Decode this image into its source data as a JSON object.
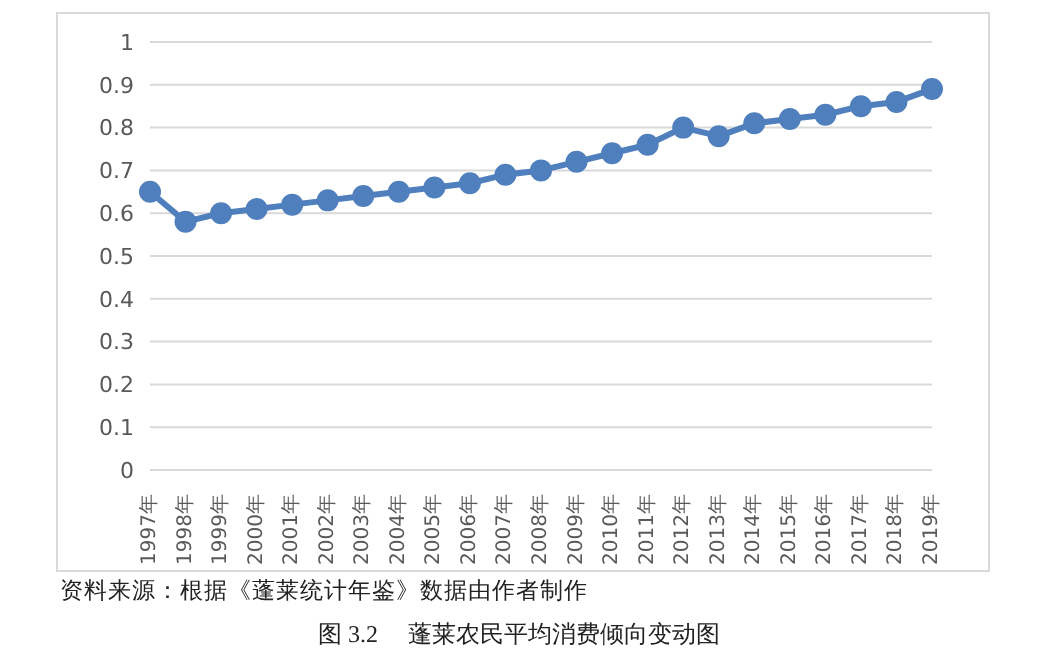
{
  "chart_data": {
    "type": "line",
    "categories": [
      "1997年",
      "1998年",
      "1999年",
      "2000年",
      "2001年",
      "2002年",
      "2003年",
      "2004年",
      "2005年",
      "2006年",
      "2007年",
      "2008年",
      "2009年",
      "2010年",
      "2011年",
      "2012年",
      "2013年",
      "2014年",
      "2015年",
      "2016年",
      "2017年",
      "2018年",
      "2019年"
    ],
    "series": [
      {
        "color": "#4f7fbd",
        "values": [
          0.65,
          0.58,
          0.6,
          0.61,
          0.62,
          0.63,
          0.64,
          0.65,
          0.66,
          0.67,
          0.69,
          0.7,
          0.72,
          0.74,
          0.76,
          0.8,
          0.78,
          0.81,
          0.82,
          0.83,
          0.85,
          0.86,
          0.89
        ]
      }
    ],
    "ylim": [
      0,
      1
    ],
    "yticks": [
      0,
      0.1,
      0.2,
      0.3,
      0.4,
      0.5,
      0.6,
      0.7,
      0.8,
      0.9,
      1
    ],
    "grid": "y",
    "marker": "circle",
    "line_style": "solid",
    "annotations": [
      "资料来源：根据《蓬莱统计年鉴》数据由作者制作",
      "图 3.2　 蓬莱农民平均消费倾向变动图"
    ]
  }
}
